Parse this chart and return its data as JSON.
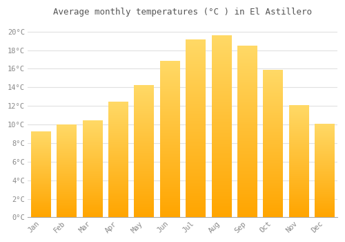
{
  "title": "Average monthly temperatures (°C ) in El Astillero",
  "months": [
    "Jan",
    "Feb",
    "Mar",
    "Apr",
    "May",
    "Jun",
    "Jul",
    "Aug",
    "Sep",
    "Oct",
    "Nov",
    "Dec"
  ],
  "values": [
    9.2,
    9.9,
    10.4,
    12.4,
    14.2,
    16.8,
    19.1,
    19.5,
    18.4,
    15.8,
    12.0,
    10.0
  ],
  "bar_color_bottom": "#FFA500",
  "bar_color_top": "#FFD966",
  "background_color": "#FFFFFF",
  "grid_color": "#E0E0E0",
  "title_color": "#555555",
  "tick_label_color": "#888888",
  "ylim": [
    0,
    21
  ],
  "yticks": [
    0,
    2,
    4,
    6,
    8,
    10,
    12,
    14,
    16,
    18,
    20
  ],
  "ytick_labels": [
    "0°C",
    "2°C",
    "4°C",
    "6°C",
    "8°C",
    "10°C",
    "12°C",
    "14°C",
    "16°C",
    "18°C",
    "20°C"
  ],
  "bar_width": 0.75
}
